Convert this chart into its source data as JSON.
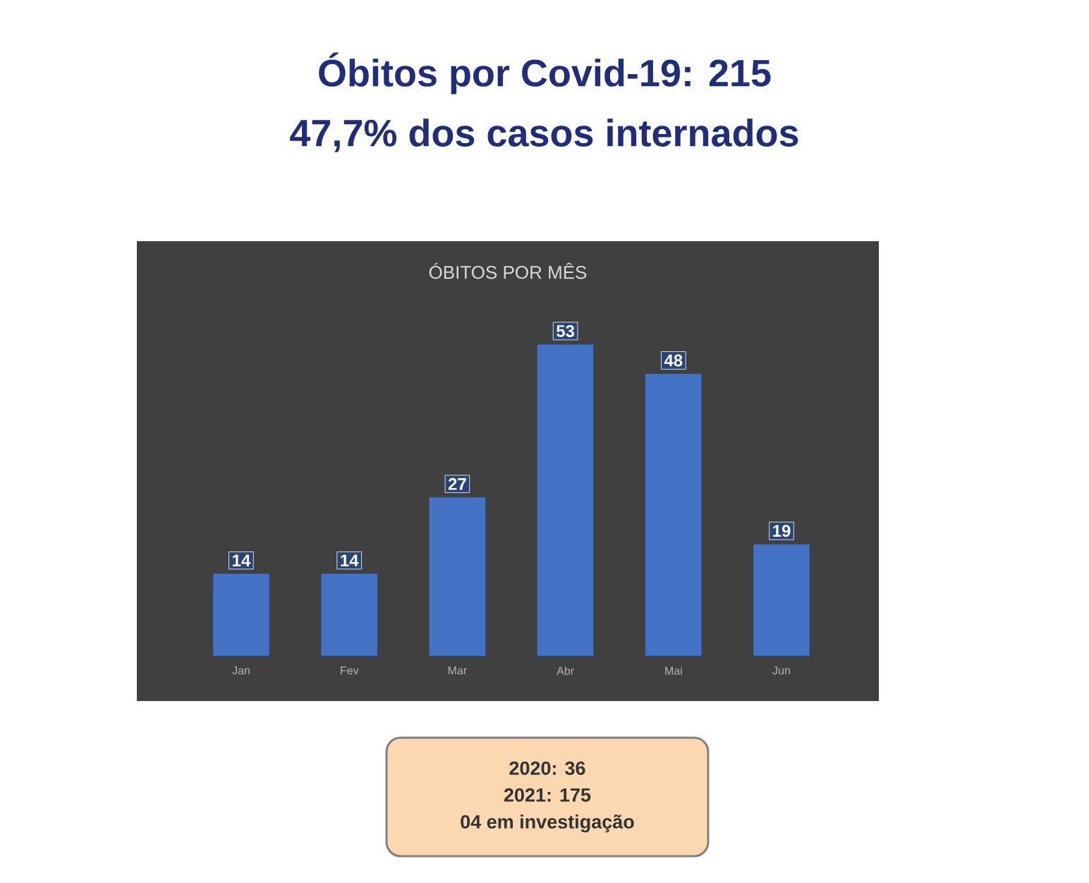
{
  "chart_data": {
    "type": "bar",
    "title": "Óbitos por Covid-19: 215",
    "subtitle": "47,7% dos casos internados",
    "annotations": [
      "ÓBITOS POR MÊS",
      "2020: 36",
      "2021: 175",
      "04 em investigação"
    ],
    "categories": [
      "Jan",
      "Fev",
      "Mar",
      "Abr",
      "Mai",
      "Jun"
    ],
    "values": [
      14,
      14,
      27,
      53,
      48,
      19
    ],
    "color": "#4472c4",
    "data_labels": true
  }
}
